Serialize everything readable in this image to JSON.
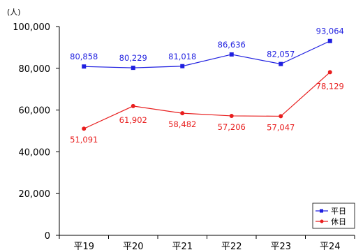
{
  "chart_data": {
    "type": "line",
    "unit_label": "(人)",
    "categories": [
      "平19",
      "平20",
      "平21",
      "平22",
      "平23",
      "平24"
    ],
    "ylim": [
      0,
      100000
    ],
    "yticks": [
      "0",
      "20,000",
      "40,000",
      "60,000",
      "80,000",
      "100,000"
    ],
    "grid": false,
    "legend_position": "bottom-right",
    "series": [
      {
        "name": "平日",
        "color": "#1f1fe0",
        "marker": "square",
        "values": [
          80858,
          80229,
          81018,
          86636,
          82057,
          93064
        ],
        "labels": [
          "80,858",
          "80,229",
          "81,018",
          "86,636",
          "82,057",
          "93,064"
        ]
      },
      {
        "name": "休日",
        "color": "#e81e1e",
        "marker": "circle",
        "values": [
          51091,
          61902,
          58482,
          57206,
          57047,
          78129
        ],
        "labels": [
          "51,091",
          "61,902",
          "58,482",
          "57,206",
          "57,047",
          "78,129"
        ]
      }
    ]
  }
}
